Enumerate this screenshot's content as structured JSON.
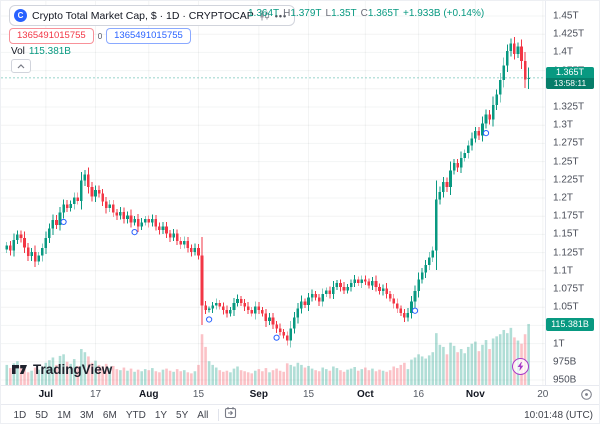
{
  "header": {
    "symbol_logo_letter": "C",
    "symbol_title": "Crypto Total Market Cap, $ · 1D · CRYPTOCAP",
    "pill_more": "•••",
    "ohlc": {
      "open": "1.364T",
      "high_label": "H",
      "high": "1.379T",
      "low_label": "L",
      "low": "1.35T",
      "close_label": "C",
      "close": "1.365T",
      "change": "+1.933B (+0.14%)"
    },
    "alert_badge_red": "1365491015755",
    "alert_sep": "0",
    "alert_badge_blue": "1365491015755",
    "vol_label": "Vol",
    "vol_value": "115.381B"
  },
  "watermark_text": "TradingView",
  "price_axis": {
    "ticks": [
      {
        "label": "1.45T",
        "value": 1.45
      },
      {
        "label": "1.425T",
        "value": 1.425
      },
      {
        "label": "1.4T",
        "value": 1.4
      },
      {
        "label": "1.375T",
        "value": 1.375
      },
      {
        "label": "1.325T",
        "value": 1.325
      },
      {
        "label": "1.3T",
        "value": 1.3
      },
      {
        "label": "1.275T",
        "value": 1.275
      },
      {
        "label": "1.25T",
        "value": 1.25
      },
      {
        "label": "1.225T",
        "value": 1.225
      },
      {
        "label": "1.2T",
        "value": 1.2
      },
      {
        "label": "1.175T",
        "value": 1.175
      },
      {
        "label": "1.15T",
        "value": 1.15
      },
      {
        "label": "1.125T",
        "value": 1.125
      },
      {
        "label": "1.1T",
        "value": 1.1
      },
      {
        "label": "1.075T",
        "value": 1.075
      },
      {
        "label": "1.05T",
        "value": 1.05
      },
      {
        "label": "1T",
        "value": 1.0
      },
      {
        "label": "975B",
        "value": 0.975
      },
      {
        "label": "950B",
        "value": 0.95
      }
    ],
    "last_price_badge": {
      "price": "1.365T",
      "countdown": "13:58:11"
    },
    "vol_badge": "115.381B"
  },
  "time_axis": {
    "ticks": [
      {
        "label": "Jul",
        "day": 11,
        "major": true
      },
      {
        "label": "17",
        "day": 25,
        "major": false
      },
      {
        "label": "Aug",
        "day": 40,
        "major": true
      },
      {
        "label": "15",
        "day": 54,
        "major": false
      },
      {
        "label": "Sep",
        "day": 71,
        "major": true
      },
      {
        "label": "15",
        "day": 85,
        "major": false
      },
      {
        "label": "Oct",
        "day": 101,
        "major": true
      },
      {
        "label": "16",
        "day": 116,
        "major": false
      },
      {
        "label": "Nov",
        "day": 132,
        "major": true
      },
      {
        "label": "20",
        "day": 151,
        "major": false
      }
    ]
  },
  "toolbar": {
    "ranges": [
      "1D",
      "5D",
      "1M",
      "3M",
      "6M",
      "YTD",
      "1Y",
      "5Y",
      "All"
    ],
    "time": "10:01:48 (UTC)"
  },
  "colors": {
    "up": "#089981",
    "down": "#f23645",
    "up_vol": "rgba(8,153,129,0.32)",
    "down_vol": "rgba(242,54,69,0.30)",
    "grid": "rgba(42,46,57,0.055)",
    "marker_blue": "#2962ff",
    "badge_green": "#089981",
    "purple": "#a83bc9"
  },
  "chart_data": {
    "type": "candlestick+volume",
    "title": "Crypto Total Market Cap, $ - 1D - CRYPTOCAP",
    "unit": "trillion USD",
    "start_date": "Jun 22",
    "end_date": "Nov 16",
    "interval": "1D",
    "y_range_trillions": [
      0.95,
      1.45
    ],
    "closes": [
      1.135,
      1.128,
      1.142,
      1.15,
      1.145,
      1.132,
      1.12,
      1.126,
      1.113,
      1.121,
      1.131,
      1.145,
      1.158,
      1.17,
      1.163,
      1.18,
      1.191,
      1.186,
      1.192,
      1.201,
      1.196,
      1.224,
      1.232,
      1.215,
      1.202,
      1.211,
      1.206,
      1.195,
      1.186,
      1.191,
      1.18,
      1.176,
      1.181,
      1.171,
      1.176,
      1.166,
      1.171,
      1.161,
      1.166,
      1.171,
      1.166,
      1.171,
      1.161,
      1.156,
      1.161,
      1.151,
      1.146,
      1.151,
      1.141,
      1.136,
      1.141,
      1.131,
      1.126,
      1.131,
      1.121,
      1.052,
      1.046,
      1.048,
      1.052,
      1.056,
      1.051,
      1.046,
      1.041,
      1.046,
      1.056,
      1.061,
      1.056,
      1.051,
      1.046,
      1.041,
      1.051,
      1.046,
      1.041,
      1.031,
      1.036,
      1.026,
      1.021,
      1.016,
      1.011,
      1.004,
      1.021,
      1.036,
      1.048,
      1.058,
      1.053,
      1.063,
      1.068,
      1.063,
      1.058,
      1.068,
      1.073,
      1.068,
      1.078,
      1.083,
      1.078,
      1.073,
      1.078,
      1.083,
      1.088,
      1.083,
      1.088,
      1.085,
      1.08,
      1.086,
      1.078,
      1.072,
      1.076,
      1.068,
      1.062,
      1.055,
      1.048,
      1.042,
      1.036,
      1.042,
      1.058,
      1.072,
      1.088,
      1.098,
      1.108,
      1.118,
      1.128,
      1.198,
      1.208,
      1.222,
      1.215,
      1.238,
      1.248,
      1.242,
      1.255,
      1.262,
      1.272,
      1.282,
      1.292,
      1.286,
      1.302,
      1.315,
      1.308,
      1.328,
      1.342,
      1.362,
      1.382,
      1.402,
      1.412,
      1.398,
      1.408,
      1.388,
      1.363,
      1.365
    ],
    "volumes_billions": [
      38,
      32,
      41,
      45,
      36,
      30,
      24,
      27,
      33,
      29,
      35,
      42,
      47,
      52,
      38,
      55,
      58,
      44,
      40,
      49,
      36,
      68,
      62,
      54,
      42,
      46,
      38,
      35,
      40,
      32,
      36,
      30,
      28,
      33,
      27,
      31,
      25,
      29,
      26,
      30,
      28,
      32,
      26,
      24,
      29,
      31,
      27,
      25,
      30,
      26,
      28,
      24,
      22,
      26,
      38,
      96,
      72,
      45,
      38,
      33,
      28,
      25,
      27,
      24,
      31,
      35,
      28,
      26,
      24,
      22,
      27,
      30,
      26,
      32,
      24,
      28,
      31,
      27,
      25,
      41,
      38,
      35,
      42,
      38,
      33,
      36,
      31,
      28,
      26,
      33,
      30,
      27,
      35,
      32,
      28,
      25,
      29,
      31,
      34,
      27,
      30,
      33,
      28,
      31,
      26,
      29,
      27,
      25,
      28,
      35,
      32,
      38,
      42,
      30,
      48,
      52,
      58,
      54,
      50,
      56,
      62,
      98,
      76,
      72,
      58,
      80,
      74,
      62,
      68,
      60,
      72,
      78,
      82,
      64,
      76,
      85,
      68,
      88,
      92,
      96,
      104,
      98,
      108,
      90,
      84,
      78,
      96,
      115.381
    ],
    "today": {
      "open": 1.364,
      "high": 1.379,
      "low": 1.35,
      "close": 1.365,
      "volume_billions": 115.381,
      "change_billions": 1.933,
      "change_pct": 0.14
    },
    "event_marker_indices": [
      16,
      36,
      57,
      76,
      115,
      135
    ]
  }
}
